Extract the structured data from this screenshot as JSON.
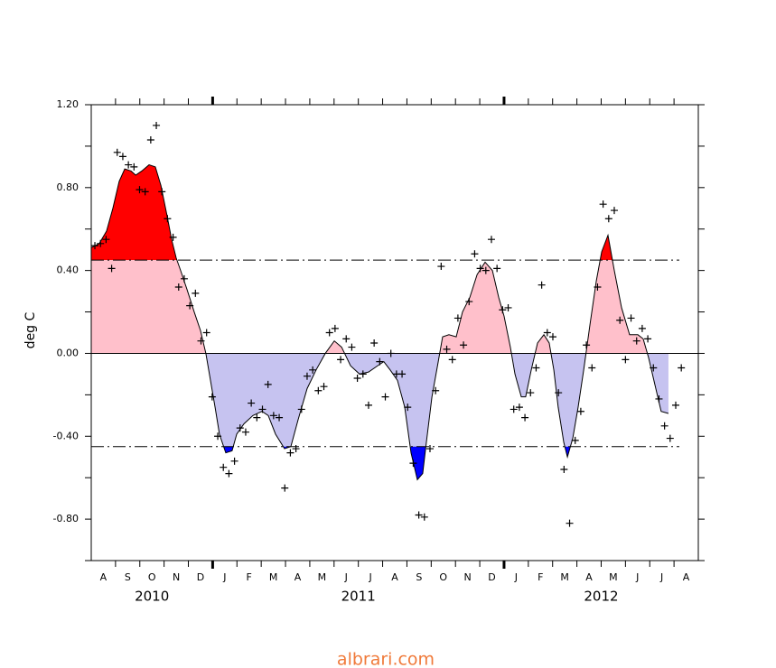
{
  "chart_data": {
    "type": "line",
    "ylabel": "deg C",
    "xlim": [
      0,
      25
    ],
    "ylim": [
      -1.0,
      1.2
    ],
    "yticks": [
      {
        "value": 1.2,
        "label": "1.20"
      },
      {
        "value": 0.8,
        "label": "0.80"
      },
      {
        "value": 0.4,
        "label": "0.40"
      },
      {
        "value": 0.0,
        "label": "0.00"
      },
      {
        "value": -0.4,
        "label": "-0.40"
      },
      {
        "value": -0.8,
        "label": "-0.80"
      }
    ],
    "yminor": [
      1.0,
      0.6,
      0.2,
      -0.2,
      -0.6,
      -1.0
    ],
    "xticks": [
      {
        "value": 0.5,
        "label": "A"
      },
      {
        "value": 1.5,
        "label": "S"
      },
      {
        "value": 2.5,
        "label": "O"
      },
      {
        "value": 3.5,
        "label": "N"
      },
      {
        "value": 4.5,
        "label": "D"
      },
      {
        "value": 5.5,
        "label": "J"
      },
      {
        "value": 6.5,
        "label": "F"
      },
      {
        "value": 7.5,
        "label": "M"
      },
      {
        "value": 8.5,
        "label": "A"
      },
      {
        "value": 9.5,
        "label": "M"
      },
      {
        "value": 10.5,
        "label": "J"
      },
      {
        "value": 11.5,
        "label": "J"
      },
      {
        "value": 12.5,
        "label": "A"
      },
      {
        "value": 13.5,
        "label": "S"
      },
      {
        "value": 14.5,
        "label": "O"
      },
      {
        "value": 15.5,
        "label": "N"
      },
      {
        "value": 16.5,
        "label": "D"
      },
      {
        "value": 17.5,
        "label": "J"
      },
      {
        "value": 18.5,
        "label": "F"
      },
      {
        "value": 19.5,
        "label": "M"
      },
      {
        "value": 20.5,
        "label": "A"
      },
      {
        "value": 21.5,
        "label": "M"
      },
      {
        "value": 22.5,
        "label": "J"
      },
      {
        "value": 23.5,
        "label": "J"
      },
      {
        "value": 24.5,
        "label": "A"
      }
    ],
    "year_labels": [
      {
        "value": 2.5,
        "label": "2010"
      },
      {
        "value": 11.0,
        "label": "2011"
      },
      {
        "value": 21.0,
        "label": "2012"
      }
    ],
    "xminor": [
      1,
      2,
      3,
      4,
      6,
      7,
      8,
      9,
      10,
      11,
      12,
      13,
      14,
      15,
      16,
      18,
      19,
      20,
      21,
      22,
      23,
      24
    ],
    "xmajor": [
      5,
      17
    ],
    "thresholds": [
      0.45,
      -0.45
    ],
    "fill_colors": {
      "strong_positive": "#ff0000",
      "positive": "#ffc0cb",
      "negative": "#c6c3f0",
      "strong_negative": "#0000ff"
    },
    "series": [
      {
        "color": "#000000",
        "x": [
          0,
          0.33,
          0.63,
          0.89,
          1.15,
          1.38,
          1.64,
          1.83,
          2.08,
          2.38,
          2.64,
          2.87,
          3.13,
          3.31,
          3.5,
          3.68,
          3.94,
          4.24,
          4.5,
          4.72,
          4.91,
          5.1,
          5.28,
          5.54,
          5.8,
          5.99,
          6.29,
          6.66,
          7.03,
          7.29,
          7.59,
          7.96,
          8.22,
          8.52,
          8.89,
          9.26,
          9.64,
          10.01,
          10.31,
          10.68,
          11.05,
          11.42,
          11.79,
          12.05,
          12.31,
          12.61,
          12.91,
          13.17,
          13.43,
          13.65,
          13.8,
          14.03,
          14.29,
          14.47,
          14.73,
          15.03,
          15.29,
          15.59,
          15.89,
          16.22,
          16.52,
          16.78,
          17.0,
          17.26,
          17.45,
          17.71,
          17.89,
          18.12,
          18.38,
          18.64,
          18.86,
          19.05,
          19.23,
          19.46,
          19.61,
          19.83,
          20.05,
          20.28,
          20.54,
          20.8,
          21.02,
          21.28,
          21.54,
          21.84,
          22.17,
          22.51,
          22.73,
          22.95,
          23.21,
          23.47,
          23.77
        ],
        "values": [
          0.51,
          0.53,
          0.59,
          0.7,
          0.83,
          0.89,
          0.88,
          0.86,
          0.88,
          0.91,
          0.9,
          0.81,
          0.66,
          0.55,
          0.46,
          0.4,
          0.31,
          0.2,
          0.11,
          0.0,
          -0.13,
          -0.26,
          -0.39,
          -0.48,
          -0.47,
          -0.39,
          -0.34,
          -0.3,
          -0.28,
          -0.3,
          -0.39,
          -0.46,
          -0.45,
          -0.32,
          -0.17,
          -0.08,
          0.0,
          0.06,
          0.03,
          -0.06,
          -0.1,
          -0.09,
          -0.06,
          -0.04,
          -0.08,
          -0.13,
          -0.26,
          -0.48,
          -0.61,
          -0.58,
          -0.43,
          -0.21,
          -0.04,
          0.08,
          0.09,
          0.08,
          0.2,
          0.27,
          0.38,
          0.44,
          0.4,
          0.27,
          0.18,
          0.03,
          -0.1,
          -0.21,
          -0.21,
          -0.08,
          0.05,
          0.09,
          0.05,
          -0.08,
          -0.26,
          -0.43,
          -0.5,
          -0.41,
          -0.26,
          -0.08,
          0.14,
          0.35,
          0.49,
          0.57,
          0.4,
          0.22,
          0.09,
          0.09,
          0.07,
          -0.02,
          -0.15,
          -0.28,
          -0.29
        ]
      },
      {
        "color": "#000000",
        "x": [
          0.15,
          0.38,
          0.61,
          0.84,
          1.07,
          1.3,
          1.53,
          1.76,
          1.99,
          2.22,
          2.45,
          2.68,
          2.91,
          3.14,
          3.37,
          3.6,
          3.83,
          4.06,
          4.29,
          4.52,
          4.75,
          4.98,
          5.21,
          5.44,
          5.67,
          5.9,
          6.13,
          6.36,
          6.59,
          6.82,
          7.05,
          7.28,
          7.51,
          7.74,
          7.97,
          8.2,
          8.43,
          8.66,
          8.89,
          9.12,
          9.35,
          9.58,
          9.81,
          10.04,
          10.27,
          10.5,
          10.73,
          10.96,
          11.19,
          11.42,
          11.65,
          11.88,
          12.11,
          12.34,
          12.57,
          12.8,
          13.03,
          13.26,
          13.49,
          13.72,
          13.95,
          14.18,
          14.41,
          14.64,
          14.87,
          15.1,
          15.33,
          15.56,
          15.79,
          16.02,
          16.25,
          16.48,
          16.71,
          16.94,
          17.17,
          17.4,
          17.63,
          17.86,
          18.09,
          18.32,
          18.55,
          18.78,
          19.01,
          19.24,
          19.47,
          19.7,
          19.93,
          20.16,
          20.39,
          20.62,
          20.85,
          21.08,
          21.31,
          21.54,
          21.77,
          22.0,
          22.23,
          22.46,
          22.69,
          22.92,
          23.15,
          23.38,
          23.61,
          23.84,
          24.07,
          24.3
        ],
        "values": [
          0.52,
          0.53,
          0.55,
          0.41,
          0.97,
          0.95,
          0.91,
          0.9,
          0.79,
          0.78,
          1.03,
          1.1,
          0.78,
          0.65,
          0.56,
          0.32,
          0.36,
          0.23,
          0.29,
          0.06,
          0.1,
          -0.21,
          -0.4,
          -0.55,
          -0.58,
          -0.52,
          -0.36,
          -0.38,
          -0.24,
          -0.31,
          -0.27,
          -0.15,
          -0.3,
          -0.31,
          -0.65,
          -0.48,
          -0.46,
          -0.27,
          -0.11,
          -0.08,
          -0.18,
          -0.16,
          0.1,
          0.12,
          -0.03,
          0.07,
          0.03,
          -0.12,
          -0.1,
          -0.25,
          0.05,
          -0.04,
          -0.21,
          0.0,
          -0.1,
          -0.1,
          -0.26,
          -0.53,
          -0.78,
          -0.79,
          -0.46,
          -0.18,
          0.42,
          0.02,
          -0.03,
          0.17,
          0.04,
          0.25,
          0.48,
          0.41,
          0.4,
          0.55,
          0.41,
          0.21,
          0.22,
          -0.27,
          -0.26,
          -0.31,
          -0.19,
          -0.07,
          0.33,
          0.1,
          0.08,
          -0.19,
          -0.56,
          -0.82,
          -0.42,
          -0.28,
          0.04,
          -0.07,
          0.32,
          0.72,
          0.65,
          0.69,
          0.16,
          -0.03,
          0.17,
          0.06,
          0.12,
          0.07,
          -0.07,
          -0.22,
          -0.35,
          -0.41,
          -0.25,
          -0.07
        ]
      }
    ]
  },
  "footer": "albrari.com"
}
